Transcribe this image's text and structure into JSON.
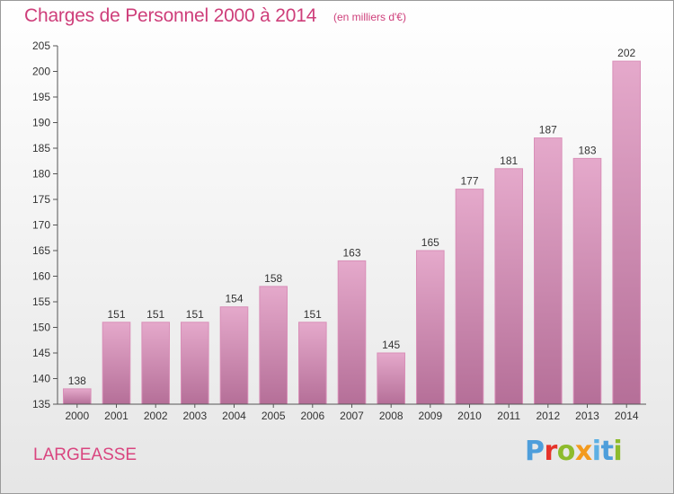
{
  "chart_data": {
    "type": "bar",
    "title": "Charges de Personnel 2000 à 2014",
    "subtitle": "(en milliers d'€)",
    "categories": [
      "2000",
      "2001",
      "2002",
      "2003",
      "2004",
      "2005",
      "2006",
      "2007",
      "2008",
      "2009",
      "2010",
      "2011",
      "2012",
      "2013",
      "2014"
    ],
    "values": [
      138,
      151,
      151,
      151,
      154,
      158,
      151,
      163,
      145,
      165,
      177,
      181,
      187,
      183,
      202
    ],
    "ylim": [
      135,
      205
    ],
    "yticks": [
      135,
      140,
      145,
      150,
      155,
      160,
      165,
      170,
      175,
      180,
      185,
      190,
      195,
      200,
      205
    ],
    "grid": false,
    "bar_color_top": "#e5a9cb",
    "bar_color_bottom": "#b56f98",
    "bar_edge_color": "#d98fb8"
  },
  "commune": "LARGEASSE",
  "logo": {
    "text": "Proxiti"
  }
}
